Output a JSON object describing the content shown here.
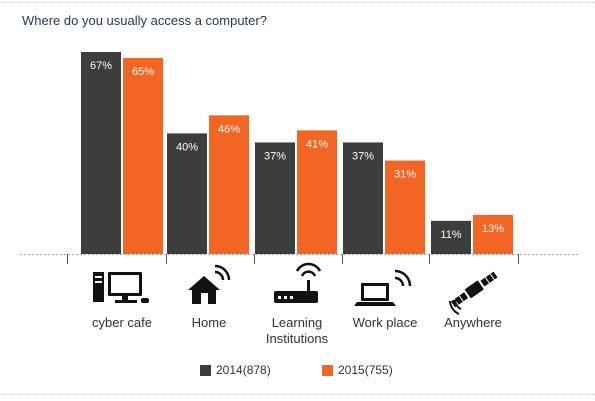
{
  "chart_data": {
    "type": "bar",
    "title": "Where do you usually access a computer?",
    "categories": [
      "cyber cafe",
      "Home",
      "Learning\nInstitutions",
      "Work place",
      "Anywhere"
    ],
    "category_icons": [
      "desktop-computer-icon",
      "home-wifi-icon",
      "router-icon",
      "laptop-wifi-icon",
      "satellite-icon"
    ],
    "series": [
      {
        "name": "2014(878)",
        "values": [
          67,
          40,
          37,
          37,
          11
        ],
        "color": "#3d3d3d"
      },
      {
        "name": "2015(755)",
        "values": [
          65,
          46,
          41,
          31,
          13
        ],
        "color": "#f26522"
      }
    ],
    "value_suffix": "%",
    "ylim": [
      0,
      67
    ],
    "legend_position": "bottom-center",
    "grid": false
  }
}
